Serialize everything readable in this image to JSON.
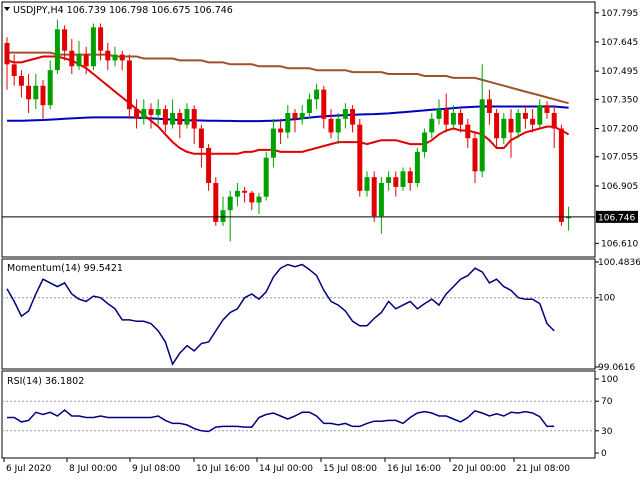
{
  "chart_data": [
    {
      "type": "candlestick",
      "title": "USDJPY,H4  106.739 106.798 106.675 106.746",
      "ylim": [
        106.55,
        107.84
      ],
      "yticks": [
        "107.795",
        "107.645",
        "107.495",
        "107.350",
        "107.200",
        "107.055",
        "106.905",
        "106.746",
        "106.610"
      ],
      "current_price": "106.746",
      "colors": {
        "up": "#00a000",
        "down": "#e00000",
        "ma_fast": "#e00000",
        "ma_mid": "#0000c0",
        "ma_slow": "#a0522d"
      },
      "candles": [
        [
          107.64,
          107.53,
          107.67,
          107.4
        ],
        [
          107.53,
          107.47,
          107.58,
          107.42
        ],
        [
          107.47,
          107.42,
          107.5,
          107.36
        ],
        [
          107.42,
          107.35,
          107.48,
          107.28
        ],
        [
          107.35,
          107.42,
          107.48,
          107.3
        ],
        [
          107.42,
          107.32,
          107.45,
          107.25
        ],
        [
          107.32,
          107.5,
          107.55,
          107.3
        ],
        [
          107.5,
          107.71,
          107.76,
          107.48
        ],
        [
          107.71,
          107.6,
          107.73,
          107.55
        ],
        [
          107.6,
          107.52,
          107.66,
          107.48
        ],
        [
          107.52,
          107.58,
          107.65,
          107.5
        ],
        [
          107.58,
          107.52,
          107.62,
          107.48
        ],
        [
          107.52,
          107.72,
          107.74,
          107.5
        ],
        [
          107.72,
          107.6,
          107.74,
          107.55
        ],
        [
          107.6,
          107.55,
          107.64,
          107.5
        ],
        [
          107.55,
          107.58,
          107.62,
          107.52
        ],
        [
          107.58,
          107.55,
          107.6,
          107.5
        ],
        [
          107.55,
          107.3,
          107.58,
          107.25
        ],
        [
          107.3,
          107.25,
          107.35,
          107.2
        ],
        [
          107.25,
          107.3,
          107.35,
          107.22
        ],
        [
          107.3,
          107.27,
          107.33,
          107.2
        ],
        [
          107.27,
          107.3,
          107.35,
          107.22
        ],
        [
          107.3,
          107.22,
          107.32,
          107.18
        ],
        [
          107.22,
          107.28,
          107.35,
          107.2
        ],
        [
          107.28,
          107.22,
          107.3,
          107.15
        ],
        [
          107.22,
          107.3,
          107.33,
          107.2
        ],
        [
          107.3,
          107.2,
          107.32,
          107.12
        ],
        [
          107.2,
          107.1,
          107.22,
          107.0
        ],
        [
          107.1,
          106.92,
          107.12,
          106.88
        ],
        [
          106.92,
          106.72,
          106.95,
          106.7
        ],
        [
          106.72,
          106.78,
          106.85,
          106.7
        ],
        [
          106.78,
          106.85,
          106.88,
          106.62
        ],
        [
          106.85,
          106.88,
          106.92,
          106.8
        ],
        [
          106.88,
          106.87,
          106.9,
          106.82
        ],
        [
          106.87,
          106.82,
          106.88,
          106.78
        ],
        [
          106.82,
          106.85,
          106.87,
          106.76
        ],
        [
          106.85,
          107.05,
          107.08,
          106.83
        ],
        [
          107.05,
          107.2,
          107.25,
          107.0
        ],
        [
          107.2,
          107.18,
          107.25,
          107.12
        ],
        [
          107.18,
          107.28,
          107.32,
          107.15
        ],
        [
          107.28,
          107.25,
          107.3,
          107.18
        ],
        [
          107.25,
          107.28,
          107.32,
          107.22
        ],
        [
          107.28,
          107.35,
          107.38,
          107.25
        ],
        [
          107.35,
          107.4,
          107.43,
          107.3
        ],
        [
          107.4,
          107.25,
          107.42,
          107.2
        ],
        [
          107.25,
          107.18,
          107.3,
          107.15
        ],
        [
          107.18,
          107.25,
          107.28,
          107.12
        ],
        [
          107.25,
          107.3,
          107.33,
          107.2
        ],
        [
          107.3,
          107.22,
          107.32,
          107.18
        ],
        [
          107.22,
          106.88,
          107.25,
          106.85
        ],
        [
          106.88,
          106.95,
          106.98,
          106.85
        ],
        [
          106.95,
          106.75,
          106.98,
          106.72
        ],
        [
          106.75,
          106.92,
          106.95,
          106.66
        ],
        [
          106.92,
          106.95,
          106.98,
          106.88
        ],
        [
          106.95,
          106.9,
          106.98,
          106.85
        ],
        [
          106.9,
          106.98,
          107.0,
          106.88
        ],
        [
          106.98,
          106.92,
          107.0,
          106.88
        ],
        [
          106.92,
          107.08,
          107.1,
          106.9
        ],
        [
          107.08,
          107.18,
          107.2,
          107.05
        ],
        [
          107.18,
          107.25,
          107.28,
          107.15
        ],
        [
          107.25,
          107.3,
          107.35,
          107.22
        ],
        [
          107.3,
          107.22,
          107.38,
          107.18
        ],
        [
          107.22,
          107.28,
          107.32,
          107.2
        ],
        [
          107.28,
          107.22,
          107.3,
          107.18
        ],
        [
          107.22,
          107.15,
          107.25,
          107.1
        ],
        [
          107.15,
          106.98,
          107.18,
          106.92
        ],
        [
          106.98,
          107.35,
          107.53,
          106.95
        ],
        [
          107.35,
          107.28,
          107.4,
          107.22
        ],
        [
          107.28,
          107.15,
          107.3,
          107.1
        ],
        [
          107.15,
          107.25,
          107.28,
          107.12
        ],
        [
          107.25,
          107.18,
          107.3,
          107.05
        ],
        [
          107.18,
          107.28,
          107.3,
          107.15
        ],
        [
          107.28,
          107.25,
          107.32,
          107.2
        ],
        [
          107.25,
          107.22,
          107.3,
          107.18
        ],
        [
          107.22,
          107.32,
          107.35,
          107.2
        ],
        [
          107.32,
          107.28,
          107.34,
          107.25
        ],
        [
          107.28,
          107.2,
          107.32,
          107.1
        ],
        [
          107.2,
          106.72,
          107.22,
          106.7
        ],
        [
          106.739,
          106.746,
          106.798,
          106.675
        ]
      ],
      "ma_fast": [
        107.55,
        107.54,
        107.54,
        107.55,
        107.56,
        107.57,
        107.57,
        107.57,
        107.56,
        107.55,
        107.53,
        107.51,
        107.48,
        107.45,
        107.42,
        107.39,
        107.36,
        107.33,
        107.3,
        107.27,
        107.24,
        107.21,
        107.17,
        107.13,
        107.1,
        107.08,
        107.07,
        107.07,
        107.07,
        107.07,
        107.07,
        107.07,
        107.07,
        107.08,
        107.08,
        107.09,
        107.09,
        107.09,
        107.08,
        107.08,
        107.08,
        107.08,
        107.09,
        107.1,
        107.11,
        107.12,
        107.13,
        107.13,
        107.13,
        107.13,
        107.12,
        107.13,
        107.14,
        107.14,
        107.14,
        107.13,
        107.12,
        107.12,
        107.12,
        107.14,
        107.17,
        107.19,
        107.2,
        107.19,
        107.19,
        107.18,
        107.17,
        107.14,
        107.1,
        107.1,
        107.14,
        107.16,
        107.18,
        107.19,
        107.2,
        107.21,
        107.21,
        107.19,
        107.17
      ],
      "ma_mid": [
        107.24,
        107.24,
        107.24,
        107.241,
        107.243,
        107.244,
        107.246,
        107.248,
        107.25,
        107.252,
        107.254,
        107.256,
        107.257,
        107.257,
        107.257,
        107.257,
        107.257,
        107.257,
        107.256,
        107.254,
        107.252,
        107.25,
        107.248,
        107.246,
        107.244,
        107.243,
        107.242,
        107.241,
        107.24,
        107.24,
        107.239,
        107.239,
        107.238,
        107.238,
        107.238,
        107.238,
        107.239,
        107.24,
        107.242,
        107.245,
        107.248,
        107.252,
        107.256,
        107.26,
        107.263,
        107.265,
        107.267,
        107.269,
        107.271,
        107.272,
        107.273,
        107.274,
        107.276,
        107.278,
        107.281,
        107.284,
        107.287,
        107.29,
        107.293,
        107.296,
        107.299,
        107.302,
        107.305,
        107.308,
        107.31,
        107.312,
        107.313,
        107.313,
        107.313,
        107.313,
        107.313,
        107.313,
        107.313,
        107.313,
        107.313,
        107.313,
        107.313,
        107.31,
        107.307
      ],
      "ma_slow": [
        107.59,
        107.59,
        107.59,
        107.59,
        107.59,
        107.59,
        107.59,
        107.58,
        107.58,
        107.58,
        107.58,
        107.58,
        107.58,
        107.58,
        107.58,
        107.57,
        107.57,
        107.57,
        107.57,
        107.56,
        107.56,
        107.56,
        107.56,
        107.56,
        107.55,
        107.55,
        107.55,
        107.55,
        107.54,
        107.54,
        107.54,
        107.53,
        107.53,
        107.53,
        107.53,
        107.52,
        107.52,
        107.52,
        107.52,
        107.51,
        107.51,
        107.51,
        107.51,
        107.5,
        107.5,
        107.5,
        107.5,
        107.5,
        107.49,
        107.49,
        107.49,
        107.49,
        107.49,
        107.48,
        107.48,
        107.48,
        107.48,
        107.48,
        107.47,
        107.47,
        107.47,
        107.47,
        107.46,
        107.46,
        107.46,
        107.46,
        107.45,
        107.44,
        107.43,
        107.42,
        107.41,
        107.4,
        107.39,
        107.38,
        107.37,
        107.36,
        107.35,
        107.34,
        107.33
      ],
      "x_ticks": [
        "6 Jul 2020",
        "8 Jul 00:00",
        "9 Jul 08:00",
        "10 Jul 16:00",
        "14 Jul 00:00",
        "15 Jul 08:00",
        "16 Jul 16:00",
        "20 Jul 00:00",
        "21 Jul 08:00"
      ]
    },
    {
      "type": "line",
      "title": "Momentum(14) 99.5421",
      "ylim": [
        99.0616,
        100.4836
      ],
      "yticks": [
        "100.4836",
        "100",
        "99.0616"
      ],
      "reference": 100,
      "color": "#000080",
      "values": [
        100.12,
        99.95,
        99.75,
        99.82,
        100.05,
        100.25,
        100.2,
        100.15,
        100.2,
        100.05,
        99.98,
        99.95,
        100.02,
        100.0,
        99.92,
        99.85,
        99.7,
        99.7,
        99.68,
        99.68,
        99.65,
        99.55,
        99.4,
        99.1,
        99.25,
        99.35,
        99.28,
        99.38,
        99.4,
        99.55,
        99.7,
        99.8,
        99.85,
        100.0,
        100.05,
        99.98,
        100.08,
        100.28,
        100.4,
        100.45,
        100.42,
        100.45,
        100.38,
        100.3,
        100.1,
        99.95,
        99.9,
        99.82,
        99.68,
        99.62,
        99.62,
        99.72,
        99.8,
        99.95,
        99.85,
        99.9,
        99.95,
        99.85,
        99.92,
        99.98,
        99.9,
        100.05,
        100.15,
        100.25,
        100.3,
        100.4,
        100.35,
        100.2,
        100.25,
        100.15,
        100.1,
        100.0,
        99.98,
        99.98,
        99.92,
        99.65,
        99.55
      ],
      "current": "99.5421"
    },
    {
      "type": "line",
      "title": "RSI(14) 36.1802",
      "ylim": [
        0,
        100
      ],
      "yticks": [
        "100",
        "70",
        "30",
        "0"
      ],
      "levels": [
        70,
        30
      ],
      "color": "#000080",
      "values": [
        48,
        48,
        42,
        44,
        55,
        52,
        55,
        50,
        58,
        50,
        50,
        48,
        48,
        50,
        48,
        48,
        48,
        48,
        48,
        48,
        48,
        50,
        44,
        40,
        40,
        38,
        33,
        30,
        29,
        35,
        36,
        36,
        36,
        35,
        35,
        48,
        52,
        54,
        50,
        46,
        50,
        55,
        55,
        50,
        40,
        40,
        38,
        40,
        36,
        36,
        40,
        43,
        43,
        44,
        44,
        40,
        48,
        54,
        56,
        54,
        50,
        50,
        46,
        42,
        48,
        57,
        54,
        50,
        53,
        50,
        55,
        54,
        56,
        54,
        49,
        36,
        36.18
      ],
      "current": "36.1802"
    }
  ]
}
